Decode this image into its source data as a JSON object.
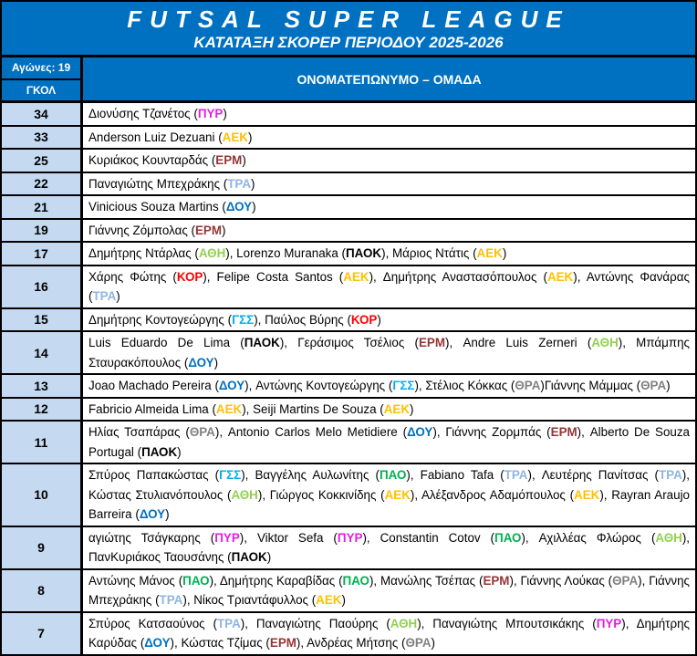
{
  "header": {
    "title": "FUTSAL SUPER LEAGUE",
    "subtitle": "ΚΑΤΑΤΑΞΗ ΣΚΟΡΕΡ ΠΕΡΙΟΔΟΥ 2025-2026",
    "matches": "Αγώνες: 19",
    "goals_col": "ΓΚΟΛ",
    "players_col": "ΟΝΟΜΑΤΕΠΩΝΥΜΟ – ΟΜΑΔΑ"
  },
  "team_colors": {
    "ΠΥΡ": "#e020e0",
    "ΑΕΚ": "#ffc000",
    "ΕΡΜ": "#943634",
    "ΤΡΑ": "#8eb4e3",
    "ΔΟΥ": "#0070c0",
    "ΑΘΗ": "#92d050",
    "ΠΑΟΚ": "#000000",
    "ΚΟΡ": "#ff0000",
    "ΓΣΣ": "#00b0f0",
    "ΘΡΑ": "#808080",
    "ΠΑΟ": "#00b050"
  },
  "colors": {
    "header_bg": "#0070c0",
    "goals_bg": "#c5d9f1"
  },
  "rows": [
    {
      "goals": "34",
      "players": [
        {
          "name": "Διονύσης Τζανέτος",
          "team": "ΠΥΡ"
        }
      ]
    },
    {
      "goals": "33",
      "players": [
        {
          "name": "Anderson Luiz Dezuani",
          "team": "ΑΕΚ"
        }
      ]
    },
    {
      "goals": "25",
      "players": [
        {
          "name": "Κυριάκος Κουνταρδάς",
          "team": "ΕΡΜ"
        }
      ]
    },
    {
      "goals": "22",
      "players": [
        {
          "name": "Παναγιώτης Μπεχράκης",
          "team": "ΤΡΑ"
        }
      ]
    },
    {
      "goals": "21",
      "players": [
        {
          "name": "Vinicious Souza Martins",
          "team": "ΔΟΥ"
        }
      ]
    },
    {
      "goals": "19",
      "players": [
        {
          "name": "Γιάννης Ζόμπολας",
          "team": "ΕΡΜ"
        }
      ]
    },
    {
      "goals": "17",
      "players": [
        {
          "name": "Δημήτρης Ντάρλας",
          "team": "ΑΘΗ"
        },
        {
          "name": "Lorenzo Muranaka",
          "team": "ΠΑΟΚ"
        },
        {
          "name": "Μάριος Ντάτις",
          "team": "ΑΕΚ"
        }
      ]
    },
    {
      "goals": "16",
      "players": [
        {
          "name": "Χάρης Φώτης",
          "team": "ΚΟΡ"
        },
        {
          "name": "Felipe Costa Santos",
          "team": "ΑΕΚ"
        },
        {
          "name": "Δημήτρης Αναστασόπουλος",
          "team": "ΑΕΚ"
        },
        {
          "name": "Αντώνης Φανάρας",
          "team": "ΤΡΑ"
        }
      ]
    },
    {
      "goals": "15",
      "players": [
        {
          "name": "Δημήτρης Κοντογεώργης",
          "team": "ΓΣΣ"
        },
        {
          "name": "Παύλος Βύρης",
          "team": "ΚΟΡ"
        }
      ]
    },
    {
      "goals": "14",
      "players": [
        {
          "name": "Luis Eduardo De Lima",
          "team": "ΠΑΟΚ"
        },
        {
          "name": "Γεράσιμος Τσέλιος",
          "team": "ΕΡΜ"
        },
        {
          "name": "Andre Luis Zerneri",
          "team": "ΑΘΗ"
        },
        {
          "name": "Μπάμπης Σταυρακόπουλος",
          "team": "ΔΟΥ"
        }
      ]
    },
    {
      "goals": "13",
      "players": [
        {
          "name": "Joao Machado Pereira",
          "team": "ΔΟΥ"
        },
        {
          "name": "Αντώνης Κοντογεώργης",
          "team": "ΓΣΣ"
        },
        {
          "name": "Στέλιος Κόκκας",
          "team": "ΘΡΑ",
          "sep": ""
        },
        {
          "name": "Γιάννης Μάμμας",
          "team": "ΘΡΑ"
        }
      ]
    },
    {
      "goals": "12",
      "players": [
        {
          "name": "Fabricio Almeida Lima",
          "team": "ΑΕΚ"
        },
        {
          "name": "Seiji Martins De Souza",
          "team": "ΑΕΚ"
        }
      ]
    },
    {
      "goals": "11",
      "players": [
        {
          "name": "Ηλίας Τσαπάρας",
          "team": "ΘΡΑ"
        },
        {
          "name": "Antonio Carlos Melo Metidiere",
          "team": "ΔΟΥ"
        },
        {
          "name": "Γιάννης Ζορμπάς",
          "team": "ΕΡΜ"
        },
        {
          "name": "Alberto De Souza Portugal",
          "team": "ΠΑΟΚ"
        }
      ]
    },
    {
      "goals": "10",
      "players": [
        {
          "name": "Σπύρος Παπακώστας",
          "team": "ΓΣΣ"
        },
        {
          "name": "Βαγγέλης Αυλωνίτης",
          "team": "ΠΑΟ"
        },
        {
          "name": "Fabiano Tafa",
          "team": "ΤΡΑ"
        },
        {
          "name": "Λευτέρης Πανίτσας",
          "team": "ΤΡΑ"
        },
        {
          "name": "Κώστας Στυλιανόπουλος",
          "team": "ΑΘΗ"
        },
        {
          "name": "Γιώργος Κοκκινίδης",
          "team": "ΑΕΚ"
        },
        {
          "name": "Αλέξανδρος Αδαμόπουλος",
          "team": "ΑΕΚ"
        },
        {
          "name": "Rayran Araujo Barreira",
          "team": "ΔΟΥ"
        }
      ]
    },
    {
      "goals": "9",
      "players": [
        {
          "name": "αγιώτης Τσάγκαρης",
          "team": "ΠΥΡ"
        },
        {
          "name": "Viktor Sefa",
          "team": "ΠΥΡ"
        },
        {
          "name": "Constantin Cotov",
          "team": "ΠΑΟ"
        },
        {
          "name": "Αχιλλέας Φλώρος",
          "team": "ΑΘΗ"
        },
        {
          "name": "ΠανΚυριάκος Ταουσάνης",
          "team": "ΠΑΟΚ"
        }
      ]
    },
    {
      "goals": "8",
      "players": [
        {
          "name": "Αντώνης Μάνος",
          "team": "ΠΑΟ"
        },
        {
          "name": "Δημήτρης Καραβίδας",
          "team": "ΠΑΟ"
        },
        {
          "name": "Μανώλης Τσέπας",
          "team": "ΕΡΜ"
        },
        {
          "name": "Γιάννης Λούκας",
          "team": "ΘΡΑ"
        },
        {
          "name": "Γιάννης Μπεχράκης",
          "team": "ΤΡΑ"
        },
        {
          "name": "Νίκος Τριαντάφυλλος",
          "team": "ΑΕΚ"
        }
      ]
    },
    {
      "goals": "7",
      "players": [
        {
          "name": "Σπύρος Κατσαούνος",
          "team": "ΤΡΑ"
        },
        {
          "name": "Παναγιώτης Παούρης",
          "team": "ΑΘΗ"
        },
        {
          "name": "Παναγιώτης Μπουτσικάκης",
          "team": "ΠΥΡ"
        },
        {
          "name": "Δημήτρης Καρύδας",
          "team": "ΔΟΥ"
        },
        {
          "name": "Κώστας Τζίμας",
          "team": "ΕΡΜ"
        },
        {
          "name": "Ανδρέας Μήτσης",
          "team": "ΘΡΑ"
        }
      ]
    }
  ]
}
